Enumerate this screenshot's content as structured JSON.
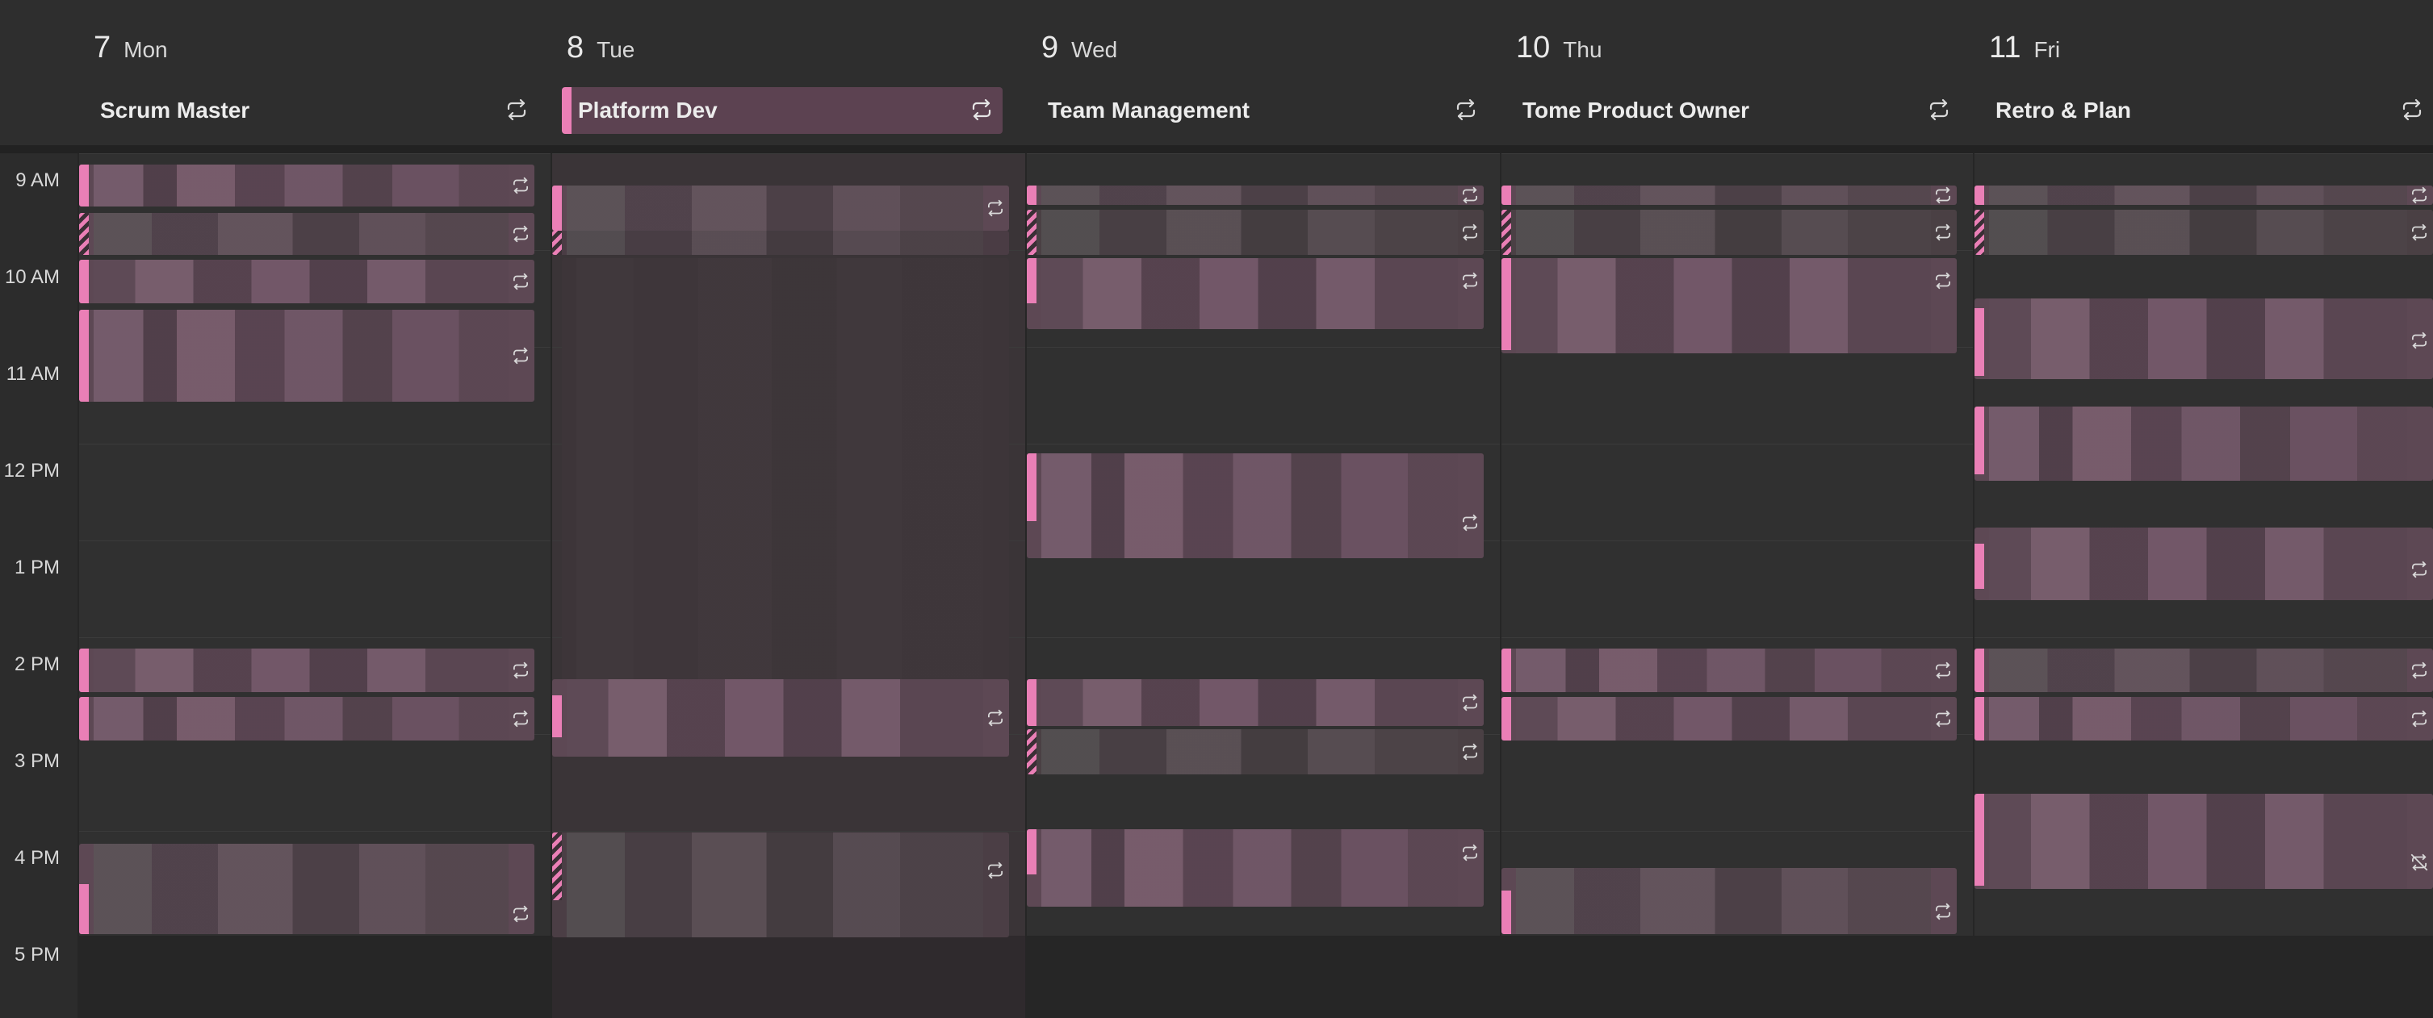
{
  "time_labels": [
    "9 AM",
    "10 AM",
    "11 AM",
    "12 PM",
    "1 PM",
    "2 PM",
    "3 PM",
    "4 PM",
    "5 PM"
  ],
  "days": [
    {
      "num": "7",
      "name": "Mon",
      "allday": "Scrum Master"
    },
    {
      "num": "8",
      "name": "Tue",
      "allday": "Platform Dev"
    },
    {
      "num": "9",
      "name": "Wed",
      "allday": "Team Management"
    },
    {
      "num": "10",
      "name": "Thu",
      "allday": "Tome Product Owner"
    },
    {
      "num": "11",
      "name": "Fri",
      "allday": "Retro & Plan"
    }
  ],
  "selected_day_index": 1,
  "icons": {
    "allday_indicator": "repeat-icon",
    "event_indicator": "repeat-icon",
    "event_exception": "repeat-off-icon"
  },
  "colors": {
    "accent": "#ea7fb6",
    "event_fill": "#5d4854",
    "background": "#303030"
  }
}
